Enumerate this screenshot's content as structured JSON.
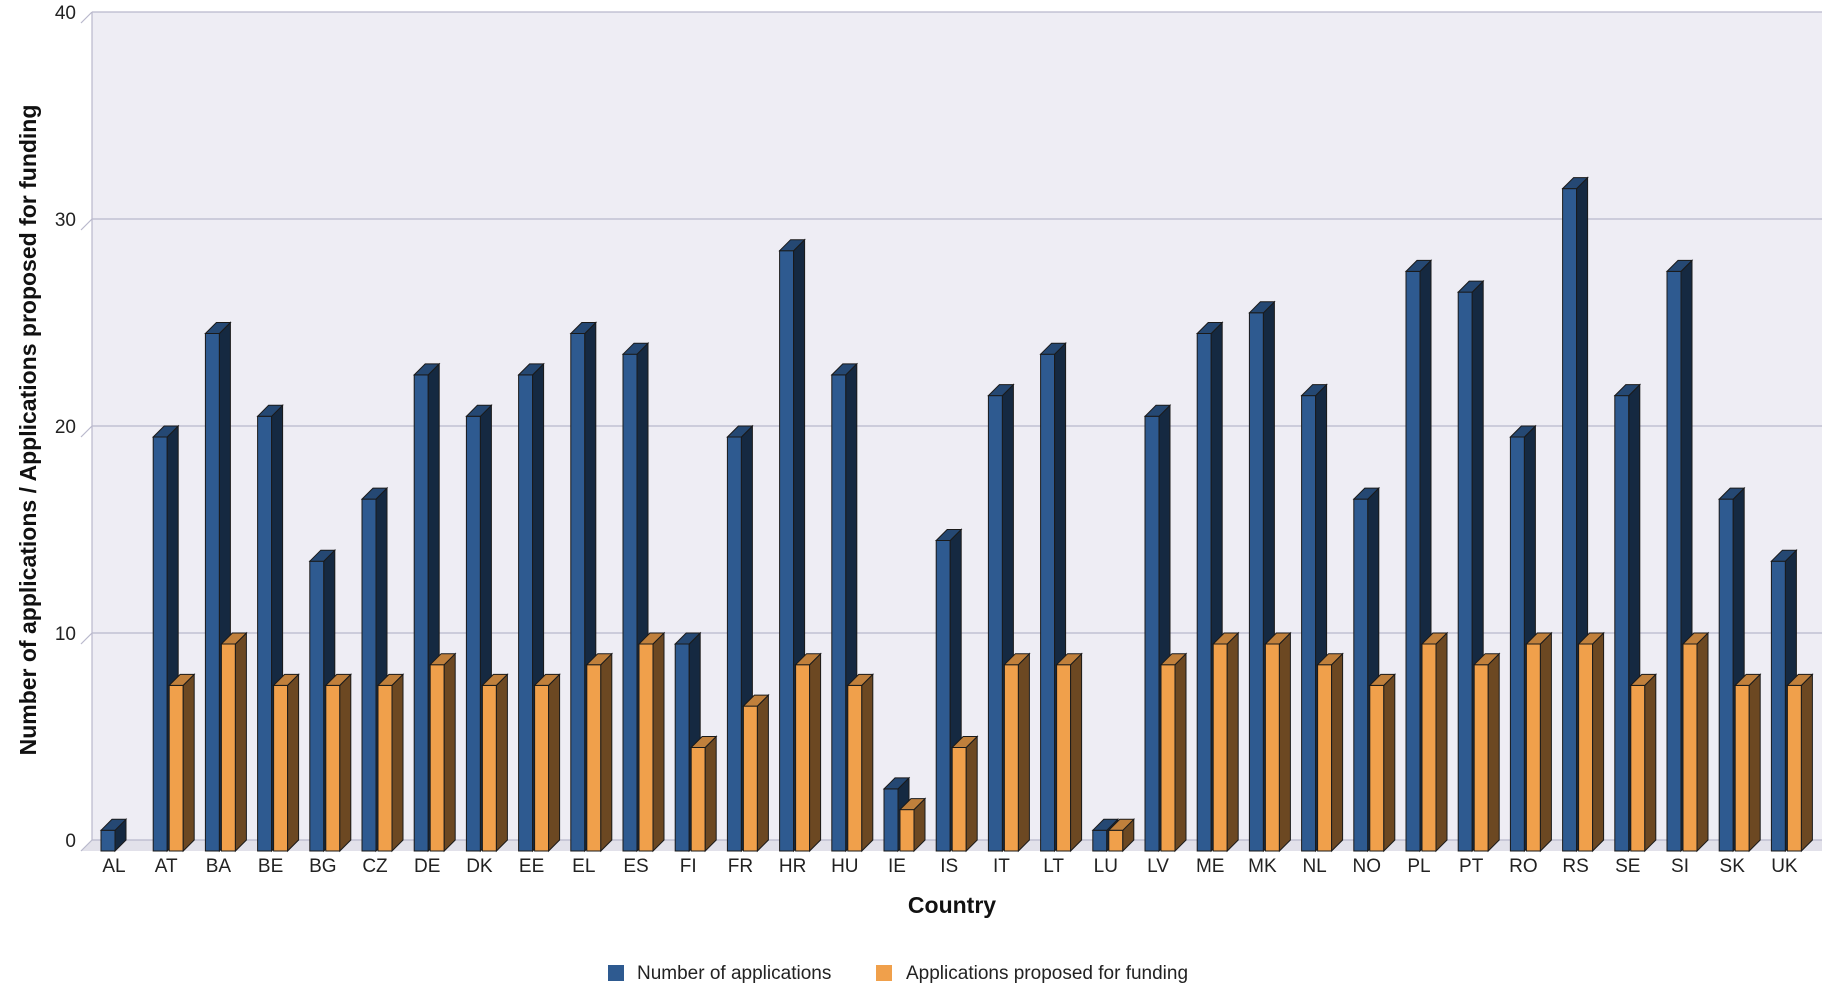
{
  "chart_data": {
    "type": "bar",
    "title": "",
    "xlabel": "Country",
    "ylabel": "Number of applications / Applications proposed for funding",
    "ylim": [
      0,
      40
    ],
    "yticks": [
      0,
      10,
      20,
      30,
      40
    ],
    "grid": true,
    "legend_position": "bottom",
    "categories": [
      "AL",
      "AT",
      "BA",
      "BE",
      "BG",
      "CZ",
      "DE",
      "DK",
      "EE",
      "EL",
      "ES",
      "FI",
      "FR",
      "HR",
      "HU",
      "IE",
      "IS",
      "IT",
      "LT",
      "LU",
      "LV",
      "ME",
      "MK",
      "NL",
      "NO",
      "PL",
      "PT",
      "RO",
      "RS",
      "SE",
      "SI",
      "SK",
      "UK"
    ],
    "series": [
      {
        "name": "Number of applications",
        "color": "#2e5a90",
        "values": [
          1,
          20,
          25,
          21,
          14,
          17,
          23,
          21,
          23,
          25,
          24,
          10,
          20,
          29,
          23,
          3,
          15,
          22,
          24,
          1,
          21,
          25,
          26,
          22,
          17,
          28,
          27,
          20,
          32,
          22,
          28,
          17,
          14
        ]
      },
      {
        "name": "Applications proposed for funding",
        "color": "#f0a04b",
        "values": [
          0,
          8,
          10,
          8,
          8,
          8,
          9,
          8,
          8,
          9,
          10,
          5,
          7,
          9,
          8,
          2,
          5,
          9,
          9,
          1,
          9,
          10,
          10,
          9,
          8,
          10,
          9,
          10,
          10,
          8,
          10,
          8,
          8
        ]
      }
    ]
  }
}
